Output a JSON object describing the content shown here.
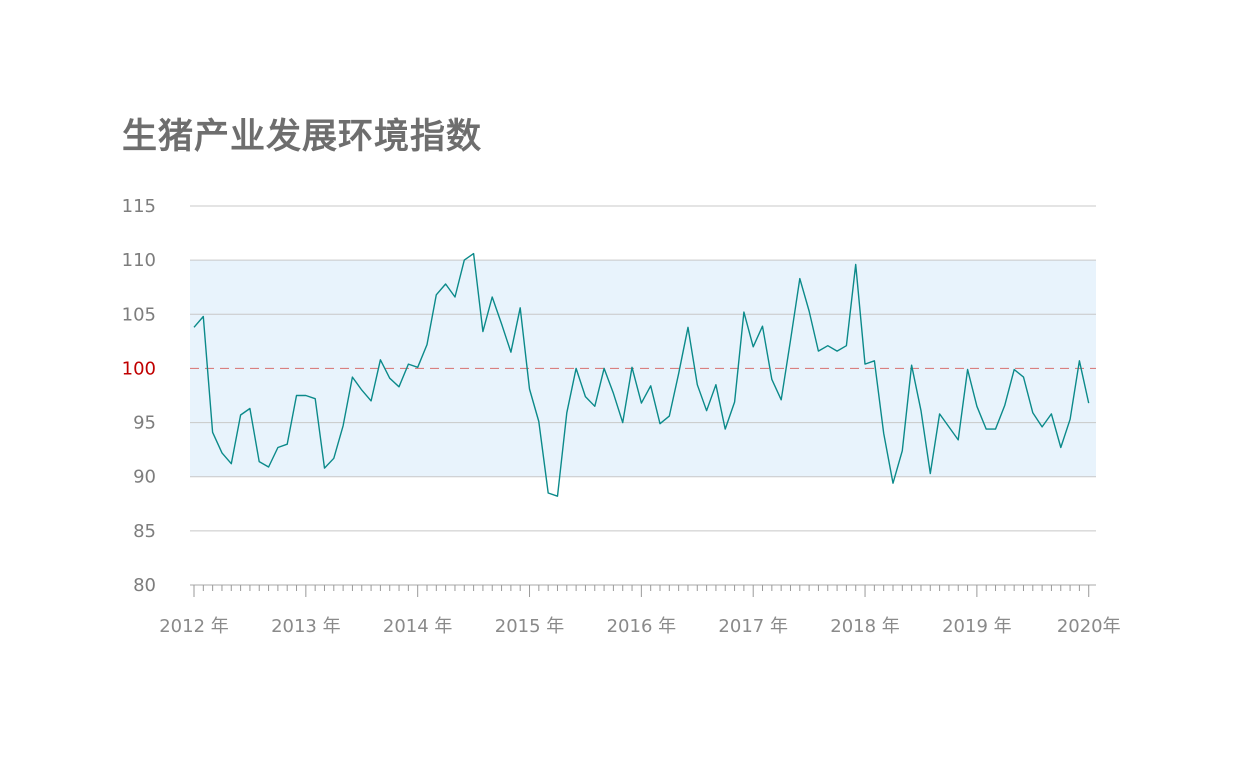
{
  "chart_data": {
    "type": "line",
    "title": "生猪产业发展环境指数",
    "xlabel": "",
    "ylabel": "",
    "ylim": [
      80,
      115
    ],
    "yticks": [
      "80",
      "85",
      "90",
      "95",
      "100",
      "105",
      "110",
      "115"
    ],
    "xticks": [
      "2012 年",
      "2013 年",
      "2014 年",
      "2015 年",
      "2016 年",
      "2017 年",
      "2018 年",
      "2019 年",
      "2020年"
    ],
    "band": [
      90,
      110
    ],
    "reference_line": 100,
    "grid": true,
    "colors": {
      "line": "#0b8a8a",
      "band": "#e8f3fc",
      "reference": "#d98080",
      "grid": "#c8c8c8"
    },
    "series": [
      {
        "start": "2012-01",
        "values": [
          103.8,
          104.8,
          94.1,
          92.2,
          91.2,
          95.7,
          96.3,
          91.4,
          90.9,
          92.7,
          93.0,
          97.5,
          97.5,
          97.2,
          90.8,
          91.7,
          94.7,
          99.2,
          98.0,
          97.0,
          100.8,
          99.1,
          98.3,
          100.4,
          100.1,
          102.2,
          106.8,
          107.8,
          106.6,
          110.0,
          110.6,
          103.4,
          106.6,
          104.1,
          101.5,
          105.6,
          98.1,
          95.1,
          88.5,
          88.2,
          95.9,
          100.0,
          97.4,
          96.5,
          100.0,
          97.7,
          95.0,
          100.1,
          96.8,
          98.4,
          94.9,
          95.6,
          99.5,
          103.8,
          98.5,
          96.1,
          98.5,
          94.4,
          96.9,
          105.2,
          102.0,
          103.9,
          99.0,
          97.1,
          102.6,
          108.3,
          105.3,
          101.6,
          102.1,
          101.6,
          102.1,
          109.6,
          100.4,
          100.7,
          94.0,
          89.4,
          92.4,
          100.3,
          96.1,
          90.3,
          95.8,
          94.6,
          93.4,
          99.9,
          96.5,
          94.4,
          94.4,
          96.6,
          99.9,
          99.2,
          95.9,
          94.6,
          95.8,
          92.7,
          95.3,
          100.7,
          96.8
        ]
      }
    ]
  }
}
